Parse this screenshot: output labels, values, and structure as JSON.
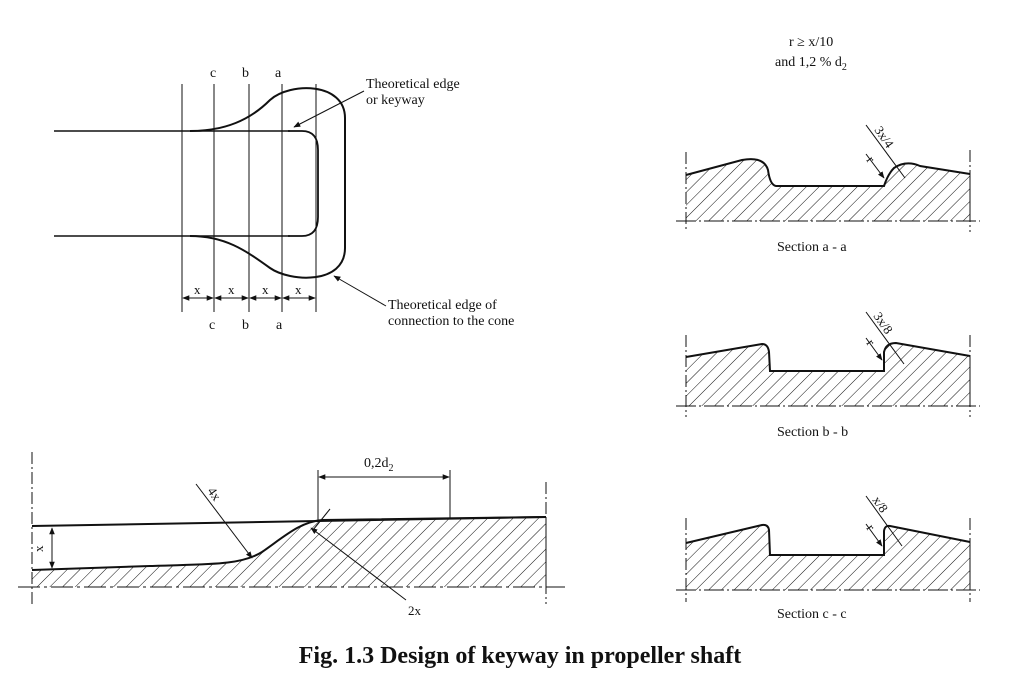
{
  "caption": "Fig. 1.3 Design of keyway in propeller shaft",
  "plan": {
    "top_labels": [
      "c",
      "b",
      "a"
    ],
    "bottom_labels": [
      "c",
      "b",
      "a"
    ],
    "x_labels": [
      "x",
      "x",
      "x",
      "x"
    ],
    "callout_keyway_line1": "Theoretical edge",
    "callout_keyway_line2": "or keyway",
    "callout_cone_line1": "Theoretical edge of",
    "callout_cone_line2": "connection to the cone"
  },
  "profile": {
    "dim_top": "0,2d",
    "dim_top_sub": "2",
    "radius_4x": "4x",
    "radius_2x": "2x",
    "depth_x": "x"
  },
  "sections": {
    "note_line1": "r  ≥ x/10",
    "note_line2": "and 1,2 % d",
    "note_sub": "2",
    "r_label": "r",
    "aa": {
      "dim": "3x/4",
      "title": "Section a - a"
    },
    "bb": {
      "dim": "3x/8",
      "title": "Section b - b"
    },
    "cc": {
      "dim": "x/8",
      "title": "Section c - c"
    }
  },
  "colors": {
    "ink": "#111111",
    "background": "#ffffff"
  }
}
